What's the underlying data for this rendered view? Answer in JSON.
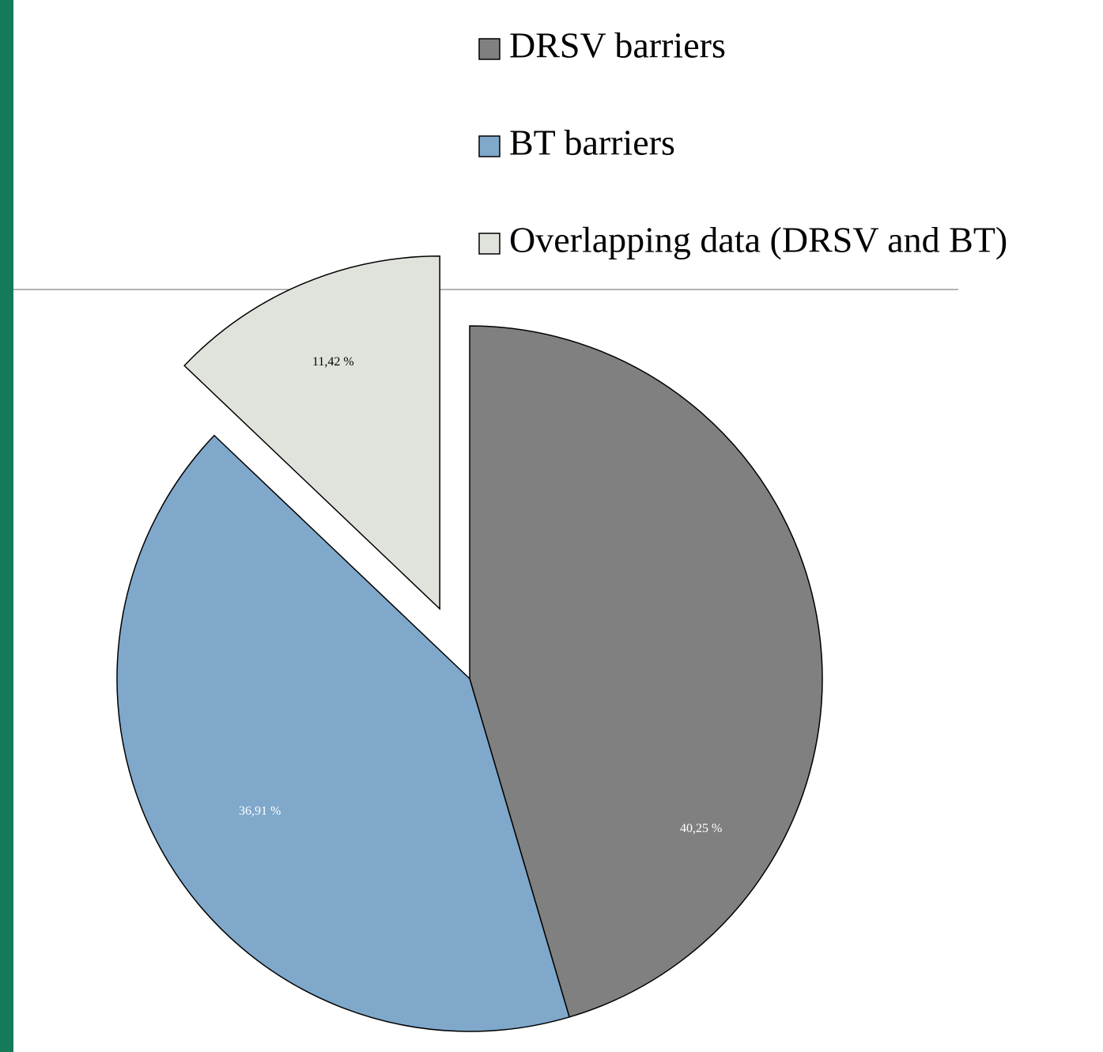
{
  "chart_data": {
    "type": "pie",
    "categories": [
      "DRSV barriers",
      "BT barriers",
      "Overlapping data (DRSV and BT)"
    ],
    "values": [
      40.25,
      36.91,
      11.42
    ],
    "value_labels": [
      "40,25 %",
      "36,91 %",
      "11,42 %"
    ],
    "colors": [
      "#808080",
      "#7fa8cb",
      "#e0e3dc"
    ],
    "label_colors": [
      "#ffffff",
      "#ffffff",
      "#000000"
    ],
    "exploded": [
      false,
      false,
      true
    ],
    "legend": "top-right"
  }
}
